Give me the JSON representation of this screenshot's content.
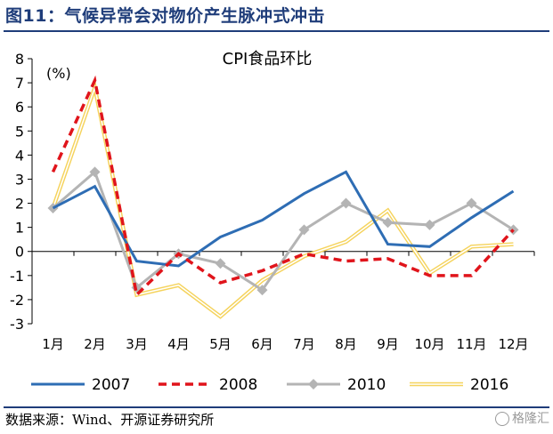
{
  "figure": {
    "title": "图11：气候异常会对物价产生脉冲式冲击",
    "source": "数据来源：Wind、开源证券研究所",
    "watermark": "格隆汇"
  },
  "chart_data": {
    "type": "line",
    "title": "CPI食品环比",
    "ylabel": "(%)",
    "xlabel": "",
    "categories": [
      "1月",
      "2月",
      "3月",
      "4月",
      "5月",
      "6月",
      "7月",
      "8月",
      "9月",
      "10月",
      "11月",
      "12月"
    ],
    "ylim": [
      -3,
      8
    ],
    "yticks": [
      -3,
      -2,
      -1,
      0,
      1,
      2,
      3,
      4,
      5,
      6,
      7,
      8
    ],
    "grid": false,
    "legend": "bottom",
    "series": [
      {
        "name": "2007",
        "color": "#2e6db4",
        "style": "solid",
        "marker": "none",
        "values": [
          1.8,
          2.7,
          -0.4,
          -0.6,
          0.6,
          1.3,
          2.4,
          3.3,
          0.3,
          0.2,
          1.4,
          2.5
        ]
      },
      {
        "name": "2008",
        "color": "#e0141b",
        "style": "dashed",
        "marker": "none",
        "values": [
          3.3,
          7.1,
          -1.8,
          -0.1,
          -1.3,
          -0.8,
          -0.1,
          -0.4,
          -0.3,
          -1.0,
          -1.0,
          0.9
        ]
      },
      {
        "name": "2010",
        "color": "#b4b4b4",
        "style": "solid",
        "marker": "diamond",
        "values": [
          1.8,
          3.3,
          -1.5,
          -0.1,
          -0.5,
          -1.6,
          0.9,
          2.0,
          1.2,
          1.1,
          2.0,
          0.9
        ]
      },
      {
        "name": "2016",
        "color": "#f5d35c",
        "style": "double",
        "marker": "none",
        "values": [
          1.8,
          6.8,
          -1.8,
          -1.4,
          -2.7,
          -1.2,
          -0.2,
          0.4,
          1.7,
          -0.9,
          0.2,
          0.3
        ]
      }
    ]
  }
}
